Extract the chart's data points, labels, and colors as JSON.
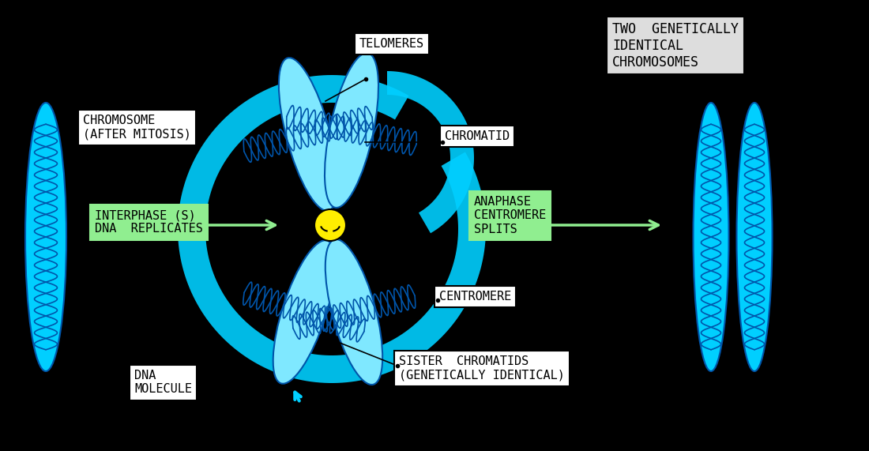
{
  "bg_color": "#000000",
  "cyan_fill": "#00CFFF",
  "cyan_fill2": "#7FE8FF",
  "blue_dna": "#0055AA",
  "green_fill": "#90EE90",
  "green_dark": "#5DBB63",
  "yellow_fill": "#FFEE00",
  "white_fill": "#FFFFFF",
  "gray_fill": "#DDDDDD",
  "black": "#000000",
  "labels": {
    "telomeres": "TELOMERES",
    "chromatid": "CHROMATID",
    "chromosome_after": "CHROMOSOME\n(AFTER MITOSIS)",
    "interphase": "INTERPHASE (S)\nDNA  REPLICATES",
    "anaphase": "ANAPHASE\nCENTROMERE\nSPLITS",
    "centromere": "CENTROMERE",
    "sister": "SISTER  CHROMATIDS\n(GENETICALLY IDENTICAL)",
    "dna_molecule": "DNA\nMOLECULE",
    "two_genetically": "TWO  GENETICALLY\nIDENTICAL\nCHROMOSOMES"
  }
}
